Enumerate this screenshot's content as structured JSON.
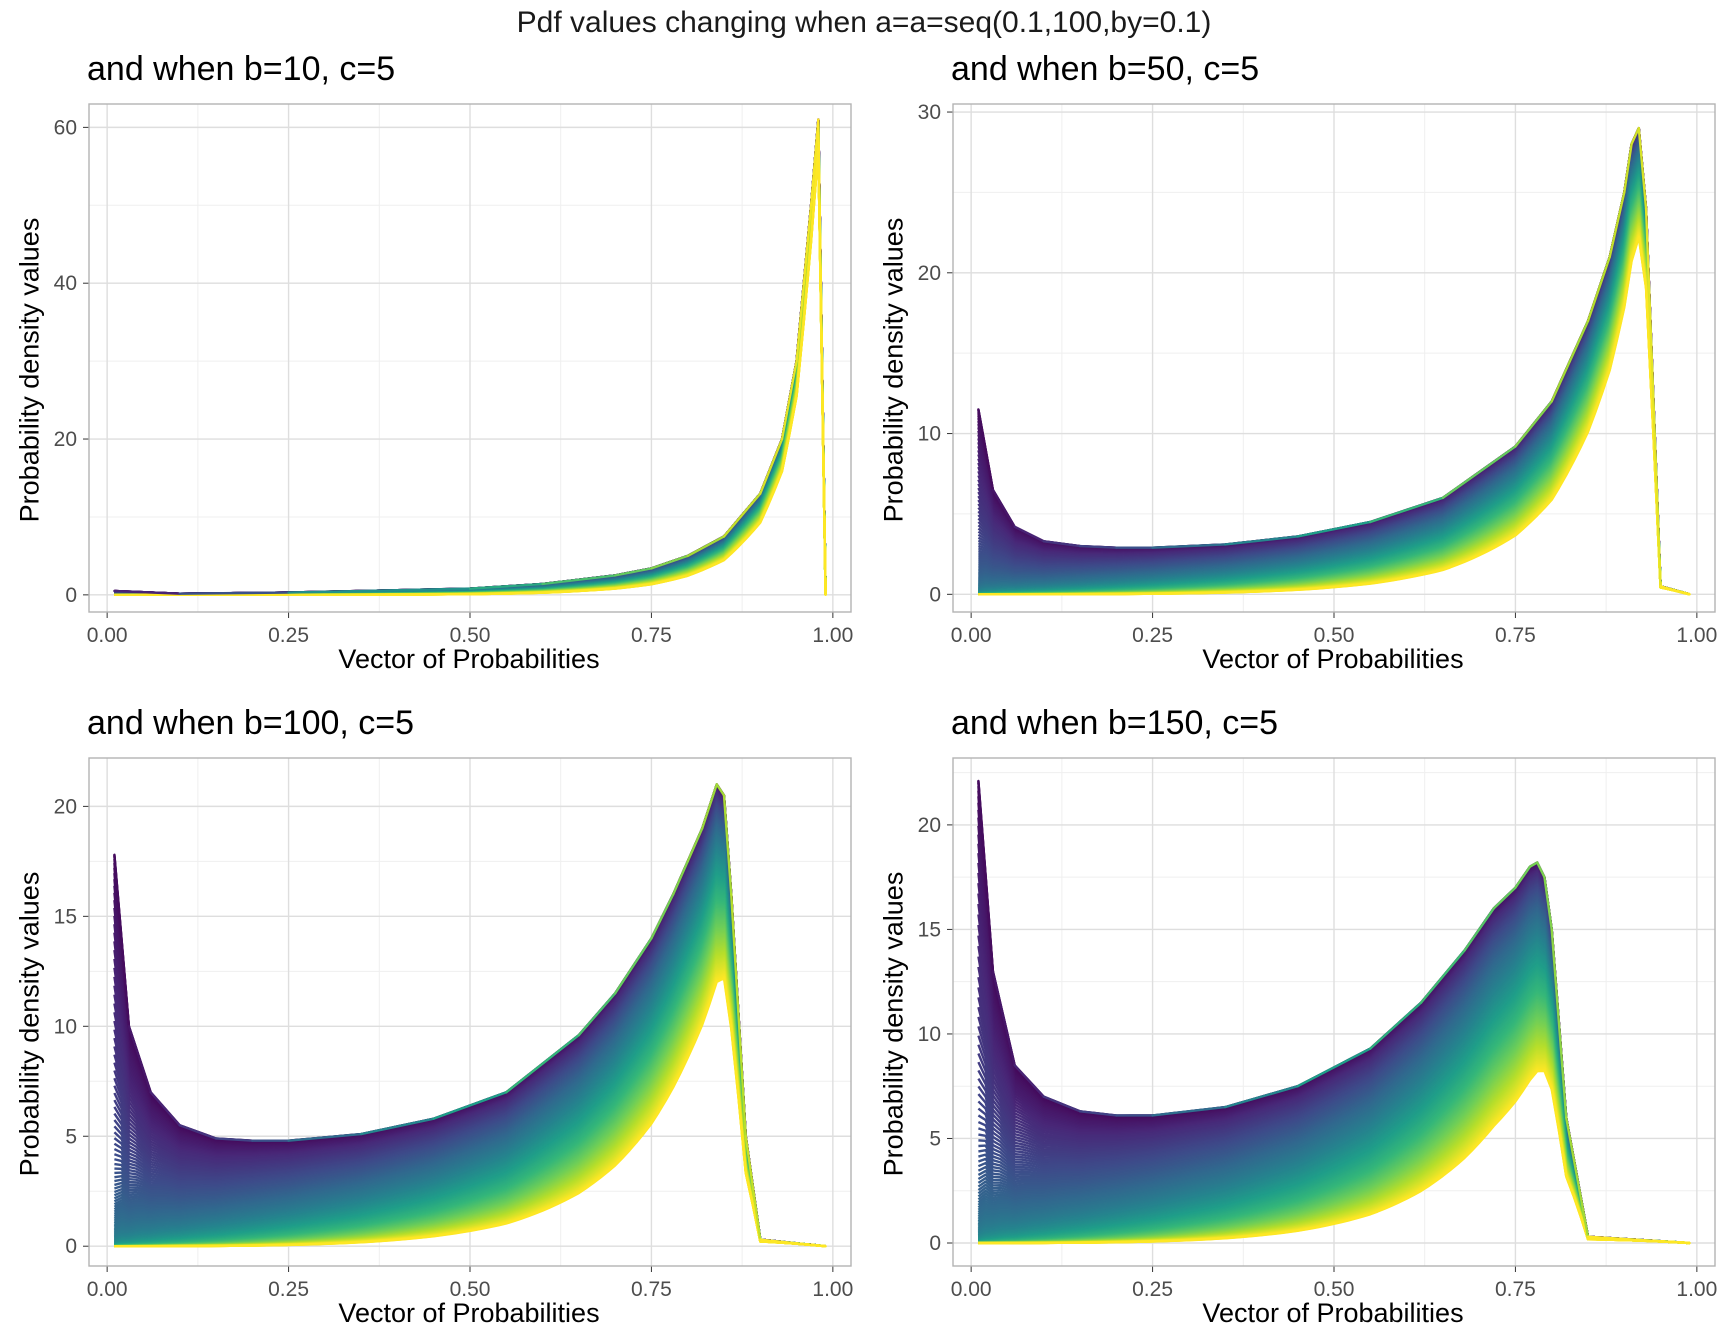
{
  "figure": {
    "title": "Pdf values changing when a=a=seq(0.1,100,by=0.1)"
  },
  "colors": {
    "palette": [
      "#440154",
      "#482878",
      "#3e4989",
      "#31688e",
      "#26828e",
      "#1f9e89",
      "#35b779",
      "#6ece58",
      "#b5de2b",
      "#fde725"
    ],
    "panel_border": "#b3b3b3",
    "grid_major": "#dedede",
    "grid_minor": "#efefef"
  },
  "chart_data": [
    {
      "type": "line",
      "title": "and when b=10, c=5",
      "xlabel": "Vector of Probabilities",
      "ylabel": "Probability density values",
      "xlim": [
        -0.025,
        1.025
      ],
      "ylim": [
        -2.2,
        63
      ],
      "x_ticks": [
        0,
        0.25,
        0.5,
        0.75,
        1
      ],
      "x_tick_labels": [
        "0.00",
        "0.25",
        "0.50",
        "0.75",
        "1.00"
      ],
      "y_ticks": [
        0,
        20,
        40,
        60
      ],
      "y_tick_labels": [
        "0",
        "20",
        "40",
        "60"
      ],
      "grid": true,
      "legend": "none",
      "params": {
        "b": 10,
        "c": 5
      },
      "a_values": {
        "start": 0.1,
        "end": 100,
        "by": 0.1
      },
      "x": {
        "start": 0.01,
        "end": 0.99,
        "by": 0.01
      },
      "envelope": {
        "x": [
          0.01,
          0.1,
          0.25,
          0.5,
          0.6,
          0.7,
          0.75,
          0.8,
          0.85,
          0.9,
          0.93,
          0.95,
          0.96,
          0.97,
          0.98,
          0.99
        ],
        "y": [
          0.5,
          0.15,
          0.3,
          0.8,
          1.4,
          2.5,
          3.4,
          5,
          7.5,
          13,
          20,
          30,
          40,
          50,
          61,
          0
        ]
      }
    },
    {
      "type": "line",
      "title": "and when b=50, c=5",
      "xlabel": "Vector of Probabilities",
      "ylabel": "Probability density values",
      "xlim": [
        -0.025,
        1.025
      ],
      "ylim": [
        -1.1,
        30.5
      ],
      "x_ticks": [
        0,
        0.25,
        0.5,
        0.75,
        1
      ],
      "x_tick_labels": [
        "0.00",
        "0.25",
        "0.50",
        "0.75",
        "1.00"
      ],
      "y_ticks": [
        0,
        10,
        20,
        30
      ],
      "y_tick_labels": [
        "0",
        "10",
        "20",
        "30"
      ],
      "grid": true,
      "legend": "none",
      "params": {
        "b": 50,
        "c": 5
      },
      "a_values": {
        "start": 0.1,
        "end": 100,
        "by": 0.1
      },
      "x": {
        "start": 0.01,
        "end": 0.99,
        "by": 0.01
      },
      "envelope": {
        "x": [
          0.01,
          0.03,
          0.06,
          0.1,
          0.15,
          0.2,
          0.25,
          0.35,
          0.45,
          0.55,
          0.65,
          0.75,
          0.8,
          0.85,
          0.88,
          0.9,
          0.91,
          0.92,
          0.93,
          0.95,
          0.99
        ],
        "y": [
          11.5,
          6.5,
          4.2,
          3.3,
          3.0,
          2.9,
          2.9,
          3.1,
          3.6,
          4.5,
          6.0,
          9.2,
          12,
          17,
          21,
          25,
          28,
          29,
          24,
          0.5,
          0
        ]
      }
    },
    {
      "type": "line",
      "title": "and when b=100, c=5",
      "xlabel": "Vector of Probabilities",
      "ylabel": "Probability density values",
      "xlim": [
        -0.025,
        1.025
      ],
      "ylim": [
        -0.9,
        22.2
      ],
      "x_ticks": [
        0,
        0.25,
        0.5,
        0.75,
        1
      ],
      "x_tick_labels": [
        "0.00",
        "0.25",
        "0.50",
        "0.75",
        "1.00"
      ],
      "y_ticks": [
        0,
        5,
        10,
        15,
        20
      ],
      "y_tick_labels": [
        "0",
        "5",
        "10",
        "15",
        "20"
      ],
      "grid": true,
      "legend": "none",
      "params": {
        "b": 100,
        "c": 5
      },
      "a_values": {
        "start": 0.1,
        "end": 100,
        "by": 0.1
      },
      "x": {
        "start": 0.01,
        "end": 0.99,
        "by": 0.01
      },
      "envelope": {
        "x": [
          0.01,
          0.03,
          0.06,
          0.1,
          0.15,
          0.2,
          0.25,
          0.35,
          0.45,
          0.55,
          0.65,
          0.7,
          0.75,
          0.78,
          0.8,
          0.82,
          0.84,
          0.85,
          0.86,
          0.88,
          0.9,
          0.99
        ],
        "y": [
          17.8,
          10,
          7,
          5.5,
          4.9,
          4.8,
          4.8,
          5.1,
          5.8,
          7.0,
          9.6,
          11.5,
          14,
          16,
          17.5,
          19,
          21,
          20.5,
          16,
          5,
          0.3,
          0
        ]
      }
    },
    {
      "type": "line",
      "title": "and when b=150, c=5",
      "xlabel": "Vector of Probabilities",
      "ylabel": "Probability density values",
      "xlim": [
        -0.025,
        1.025
      ],
      "ylim": [
        -1.1,
        23.2
      ],
      "x_ticks": [
        0,
        0.25,
        0.5,
        0.75,
        1
      ],
      "x_tick_labels": [
        "0.00",
        "0.25",
        "0.50",
        "0.75",
        "1.00"
      ],
      "y_ticks": [
        0,
        5,
        10,
        15,
        20
      ],
      "y_tick_labels": [
        "0",
        "5",
        "10",
        "15",
        "20"
      ],
      "grid": true,
      "legend": "none",
      "params": {
        "b": 150,
        "c": 5
      },
      "a_values": {
        "start": 0.1,
        "end": 100,
        "by": 0.1
      },
      "x": {
        "start": 0.01,
        "end": 0.99,
        "by": 0.01
      },
      "envelope": {
        "x": [
          0.01,
          0.03,
          0.06,
          0.1,
          0.15,
          0.2,
          0.25,
          0.35,
          0.45,
          0.55,
          0.62,
          0.68,
          0.72,
          0.75,
          0.77,
          0.78,
          0.79,
          0.8,
          0.82,
          0.85,
          0.99
        ],
        "y": [
          22.1,
          13,
          8.5,
          7,
          6.3,
          6.1,
          6.1,
          6.5,
          7.5,
          9.3,
          11.5,
          14,
          16,
          17,
          18,
          18.2,
          17.5,
          15,
          6,
          0.3,
          0
        ]
      }
    }
  ]
}
